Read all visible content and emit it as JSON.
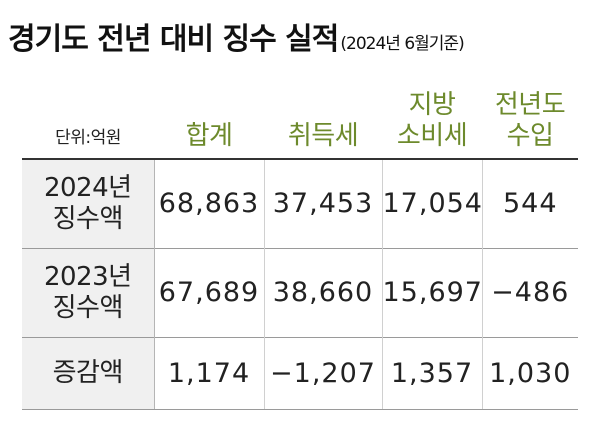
{
  "header": {
    "title": "경기도 전년 대비 징수 실적",
    "subtitle": "(2024년 6월기준)"
  },
  "table": {
    "unit": "단위:억원",
    "columns": [
      {
        "line1": "합계",
        "line2": ""
      },
      {
        "line1": "취득세",
        "line2": ""
      },
      {
        "line1": "지방",
        "line2": "소비세"
      },
      {
        "line1": "전년도",
        "line2": "수입"
      }
    ],
    "rows": [
      {
        "label1": "2024년",
        "label2": "징수액",
        "values": [
          "68,863",
          "37,453",
          "17,054",
          "544"
        ]
      },
      {
        "label1": "2023년",
        "label2": "징수액",
        "values": [
          "67,689",
          "38,660",
          "15,697",
          "−486"
        ]
      },
      {
        "label1": "증감액",
        "label2": "",
        "values": [
          "1,174",
          "−1,207",
          "1,357",
          "1,030"
        ]
      }
    ]
  },
  "colors": {
    "header_green": "#6d8a2c",
    "row_label_bg": "#f0f0f0",
    "text": "#222222"
  }
}
